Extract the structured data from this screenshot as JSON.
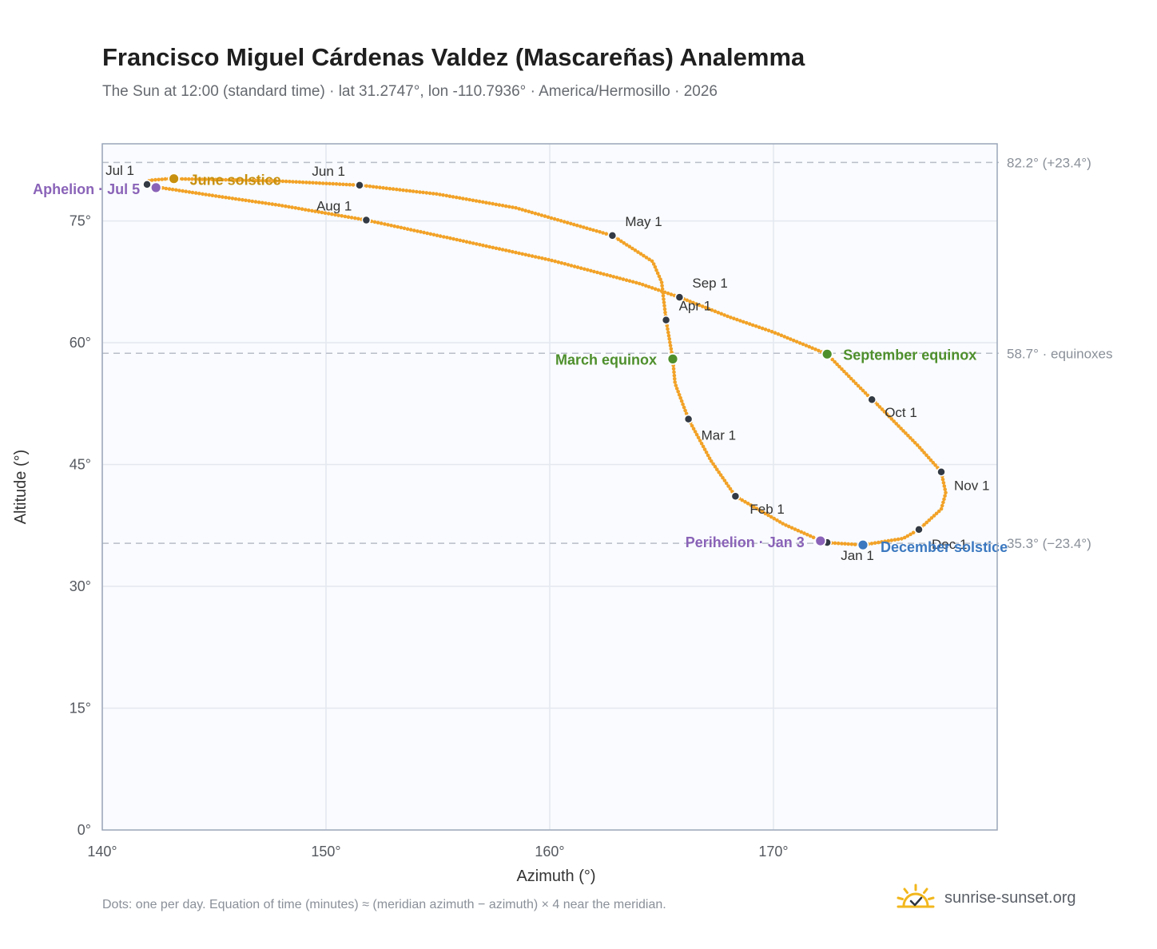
{
  "title": "Francisco Miguel Cárdenas Valdez (Mascareñas) Analemma",
  "subtitle": "The Sun at 12:00 (standard time) · lat 31.2747°, lon -110.7936° · America/Hermosillo · 2026",
  "footnote": "Dots: one per day. Equation of time (minutes) ≈ (meridian azimuth − azimuth) × 4 near the meridian.",
  "brand": {
    "name": "sunrise-sunset.org",
    "logo": "sun-logo-icon"
  },
  "chart_data": {
    "type": "scatter",
    "xlabel": "Azimuth (°)",
    "ylabel": "Altitude (°)",
    "xlim": [
      140,
      180
    ],
    "ylim": [
      0,
      84.5
    ],
    "x_ticks": [
      140,
      150,
      160,
      170
    ],
    "x_tick_labels": [
      "140°",
      "150°",
      "160°",
      "170°"
    ],
    "y_ticks": [
      0,
      15,
      30,
      45,
      60,
      75
    ],
    "y_tick_labels": [
      "0°",
      "15°",
      "30°",
      "45°",
      "60°",
      "75°"
    ],
    "grid": true,
    "colors": {
      "path": "#f2a227",
      "month_marker": "#333a44",
      "apsis": "#8a63b8",
      "june_solstice": "#c8900f",
      "december_solstice": "#3b78c0",
      "equinox": "#4e8f2c",
      "reference_line": "#b8bec8",
      "axis": "#9aa6b8",
      "plot_bg": "#f9fbfe",
      "grid": "#e4e8ef"
    },
    "reference_lines": [
      {
        "y": 82.2,
        "label": "82.2° (+23.4°)"
      },
      {
        "y": 58.7,
        "label": "58.7° · equinoxes"
      },
      {
        "y": 35.3,
        "label": "35.3° (−23.4°)"
      }
    ],
    "series": [
      {
        "type": "line-dotted",
        "points": [
          [
            172.3,
            35.4
          ],
          [
            174.0,
            35.1
          ],
          [
            175.8,
            35.9
          ],
          [
            176.5,
            37.0
          ],
          [
            177.5,
            39.5
          ],
          [
            177.7,
            41.5
          ],
          [
            177.5,
            44.1
          ],
          [
            176.5,
            47.2
          ],
          [
            175.5,
            50.0
          ],
          [
            174.5,
            52.8
          ],
          [
            174.4,
            53.0
          ],
          [
            173.5,
            55.5
          ],
          [
            172.4,
            58.6
          ],
          [
            170.0,
            61.3
          ],
          [
            168.0,
            63.2
          ],
          [
            165.8,
            65.6
          ],
          [
            164.0,
            67.3
          ],
          [
            160.0,
            70.2
          ],
          [
            155.0,
            73.2
          ],
          [
            151.8,
            75.1
          ],
          [
            148.0,
            76.9
          ],
          [
            145.0,
            78.1
          ],
          [
            142.6,
            79.1
          ],
          [
            142.2,
            79.4
          ],
          [
            142.0,
            79.5
          ],
          [
            142.1,
            80.0
          ],
          [
            143.0,
            80.2
          ],
          [
            145.0,
            80.1
          ],
          [
            148.0,
            79.9
          ],
          [
            151.5,
            79.4
          ],
          [
            155.0,
            78.3
          ],
          [
            158.5,
            76.6
          ],
          [
            162.8,
            73.2
          ],
          [
            164.6,
            70.0
          ],
          [
            165.0,
            67.5
          ],
          [
            165.2,
            62.8
          ],
          [
            165.5,
            58.0
          ],
          [
            165.6,
            55.0
          ],
          [
            166.2,
            50.6
          ],
          [
            167.2,
            45.5
          ],
          [
            168.3,
            41.1
          ],
          [
            170.5,
            37.6
          ],
          [
            172.3,
            35.4
          ]
        ]
      }
    ],
    "month_markers": [
      {
        "label": "Jan 1",
        "x": 172.4,
        "y": 35.4
      },
      {
        "label": "Feb 1",
        "x": 168.3,
        "y": 41.1
      },
      {
        "label": "Mar 1",
        "x": 166.2,
        "y": 50.6
      },
      {
        "label": "Apr 1",
        "x": 165.2,
        "y": 62.8
      },
      {
        "label": "May 1",
        "x": 162.8,
        "y": 73.2
      },
      {
        "label": "Jun 1",
        "x": 151.5,
        "y": 79.4
      },
      {
        "label": "Jul 1",
        "x": 142.0,
        "y": 79.5
      },
      {
        "label": "Aug 1",
        "x": 151.8,
        "y": 75.1
      },
      {
        "label": "Sep 1",
        "x": 165.8,
        "y": 65.6
      },
      {
        "label": "Oct 1",
        "x": 174.4,
        "y": 53.0
      },
      {
        "label": "Nov 1",
        "x": 177.5,
        "y": 44.1
      },
      {
        "label": "Dec 1",
        "x": 176.5,
        "y": 37.0
      }
    ],
    "events": [
      {
        "label": "June solstice",
        "x": 143.2,
        "y": 80.2,
        "kind": "june_solstice"
      },
      {
        "label": "Aphelion · Jul 5",
        "x": 142.4,
        "y": 79.1,
        "kind": "apsis"
      },
      {
        "label": "March equinox",
        "x": 165.5,
        "y": 58.0,
        "kind": "equinox"
      },
      {
        "label": "September equinox",
        "x": 172.4,
        "y": 58.6,
        "kind": "equinox"
      },
      {
        "label": "Perihelion · Jan 3",
        "x": 172.1,
        "y": 35.6,
        "kind": "apsis"
      },
      {
        "label": "December solstice",
        "x": 174.0,
        "y": 35.1,
        "kind": "december_solstice"
      }
    ]
  }
}
